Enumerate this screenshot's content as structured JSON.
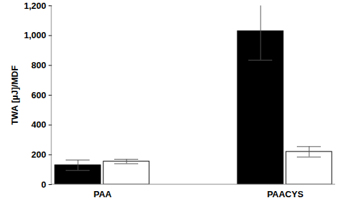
{
  "chart_data": {
    "type": "bar",
    "y_label": "TWA [µJ]/MDF",
    "categories": [
      "PAA",
      "PAACYS"
    ],
    "series": [
      {
        "color": "#000000",
        "values": [
          130,
          1030
        ],
        "errors": [
          35,
          195
        ]
      },
      {
        "color": "#ffffff",
        "values": [
          155,
          220
        ],
        "errors": [
          15,
          35
        ]
      }
    ],
    "ylim": [
      0,
      1200
    ],
    "yticks": [
      0,
      200,
      400,
      600,
      800,
      1000,
      1200
    ],
    "grid": false
  }
}
